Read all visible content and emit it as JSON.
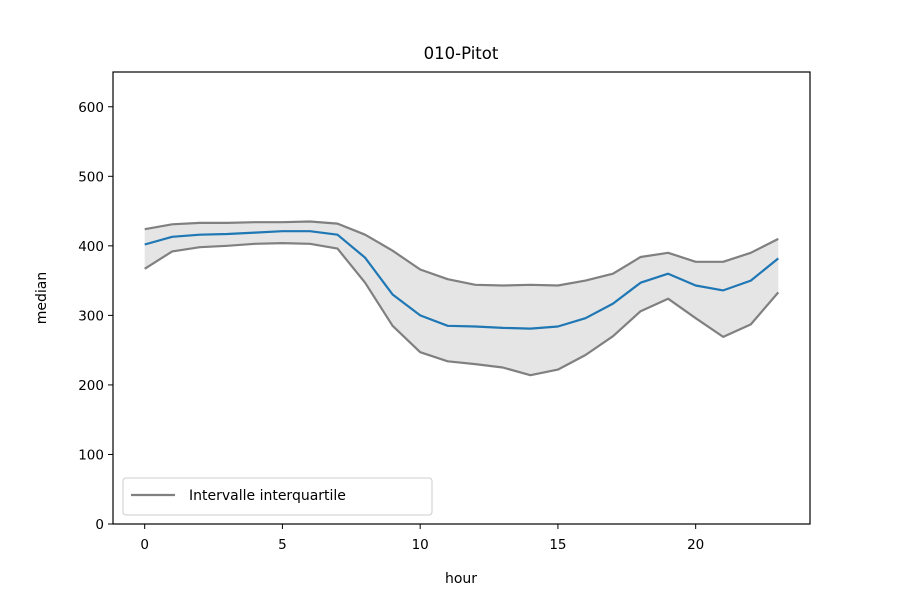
{
  "chart_data": {
    "type": "line",
    "title": "010-Pitot",
    "xlabel": "hour",
    "ylabel": "median",
    "xlim": [
      -1.15,
      24.15
    ],
    "ylim": [
      0,
      650
    ],
    "xticks": [
      0,
      5,
      10,
      15,
      20
    ],
    "yticks": [
      0,
      100,
      200,
      300,
      400,
      500,
      600
    ],
    "grid": false,
    "legend": {
      "placement": "lower-left",
      "entries": [
        "Intervalle interquartile"
      ]
    },
    "x": [
      0,
      1,
      2,
      3,
      4,
      5,
      6,
      7,
      8,
      9,
      10,
      11,
      12,
      13,
      14,
      15,
      16,
      17,
      18,
      19,
      20,
      21,
      22,
      23
    ],
    "series": [
      {
        "role": "median",
        "color": "#1f77b4",
        "values": [
          402,
          413,
          416,
          417,
          419,
          421,
          421,
          416,
          383,
          330,
          300,
          285,
          284,
          282,
          281,
          284,
          296,
          317,
          347,
          360,
          343,
          336,
          350,
          382
        ]
      },
      {
        "role": "q3",
        "color": "#808080",
        "values": [
          424,
          431,
          433,
          433,
          434,
          434,
          435,
          432,
          416,
          393,
          366,
          352,
          344,
          343,
          344,
          343,
          350,
          360,
          384,
          390,
          377,
          377,
          390,
          410
        ]
      },
      {
        "role": "q1",
        "color": "#808080",
        "values": [
          367,
          392,
          398,
          400,
          403,
          404,
          403,
          396,
          347,
          285,
          247,
          234,
          230,
          225,
          214,
          222,
          243,
          270,
          306,
          324,
          296,
          269,
          287,
          333
        ]
      }
    ],
    "band_color": "#e5e5e5"
  }
}
